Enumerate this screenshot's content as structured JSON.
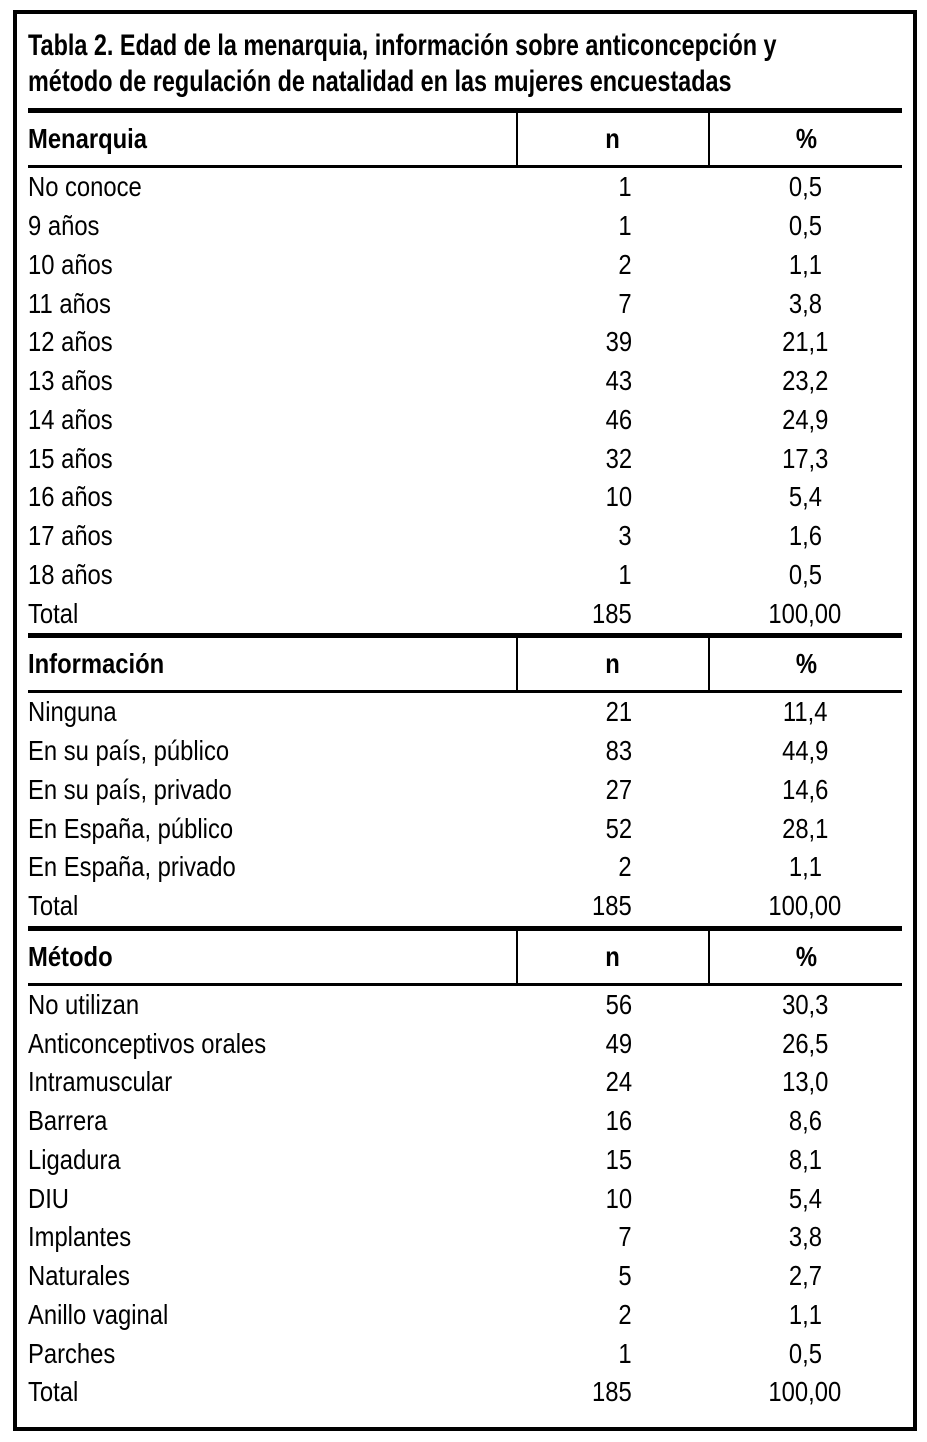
{
  "table": {
    "title_line1": "Tabla 2. Edad de la menarquia, información sobre anticoncepción y",
    "title_line2": "método de regulación de natalidad en las mujeres encuestadas",
    "columns": {
      "n": "n",
      "pct": "%"
    },
    "sections": [
      {
        "header": "Menarquia",
        "rows": [
          {
            "label": "No conoce",
            "n": "1",
            "pct": "0,5"
          },
          {
            "label": "9 años",
            "n": "1",
            "pct": "0,5"
          },
          {
            "label": "10 años",
            "n": "2",
            "pct": "1,1"
          },
          {
            "label": "11 años",
            "n": "7",
            "pct": "3,8"
          },
          {
            "label": "12 años",
            "n": "39",
            "pct": "21,1"
          },
          {
            "label": "13 años",
            "n": "43",
            "pct": "23,2"
          },
          {
            "label": "14 años",
            "n": "46",
            "pct": "24,9"
          },
          {
            "label": "15 años",
            "n": "32",
            "pct": "17,3"
          },
          {
            "label": "16 años",
            "n": "10",
            "pct": "5,4"
          },
          {
            "label": "17 años",
            "n": "3",
            "pct": "1,6"
          },
          {
            "label": "18 años",
            "n": "1",
            "pct": "0,5"
          },
          {
            "label": "Total",
            "n": "185",
            "pct": "100,00"
          }
        ]
      },
      {
        "header": "Información",
        "rows": [
          {
            "label": "Ninguna",
            "n": "21",
            "pct": "11,4"
          },
          {
            "label": "En su país, público",
            "n": "83",
            "pct": "44,9"
          },
          {
            "label": "En su país, privado",
            "n": "27",
            "pct": "14,6"
          },
          {
            "label": "En España, público",
            "n": "52",
            "pct": "28,1"
          },
          {
            "label": "En España, privado",
            "n": "2",
            "pct": "1,1"
          },
          {
            "label": "Total",
            "n": "185",
            "pct": "100,00"
          }
        ]
      },
      {
        "header": "Método",
        "rows": [
          {
            "label": "No utilizan",
            "n": "56",
            "pct": "30,3"
          },
          {
            "label": "Anticonceptivos orales",
            "n": "49",
            "pct": "26,5"
          },
          {
            "label": "Intramuscular",
            "n": "24",
            "pct": "13,0"
          },
          {
            "label": "Barrera",
            "n": "16",
            "pct": "8,6"
          },
          {
            "label": "Ligadura",
            "n": "15",
            "pct": "8,1"
          },
          {
            "label": "DIU",
            "n": "10",
            "pct": "5,4"
          },
          {
            "label": "Implantes",
            "n": "7",
            "pct": "3,8"
          },
          {
            "label": "Naturales",
            "n": "5",
            "pct": "2,7"
          },
          {
            "label": "Anillo vaginal",
            "n": "2",
            "pct": "1,1"
          },
          {
            "label": "Parches",
            "n": "1",
            "pct": "0,5"
          },
          {
            "label": "Total",
            "n": "185",
            "pct": "100,00"
          }
        ]
      }
    ]
  },
  "colors": {
    "border": "#000000",
    "background": "#ffffff",
    "text": "#000000"
  }
}
